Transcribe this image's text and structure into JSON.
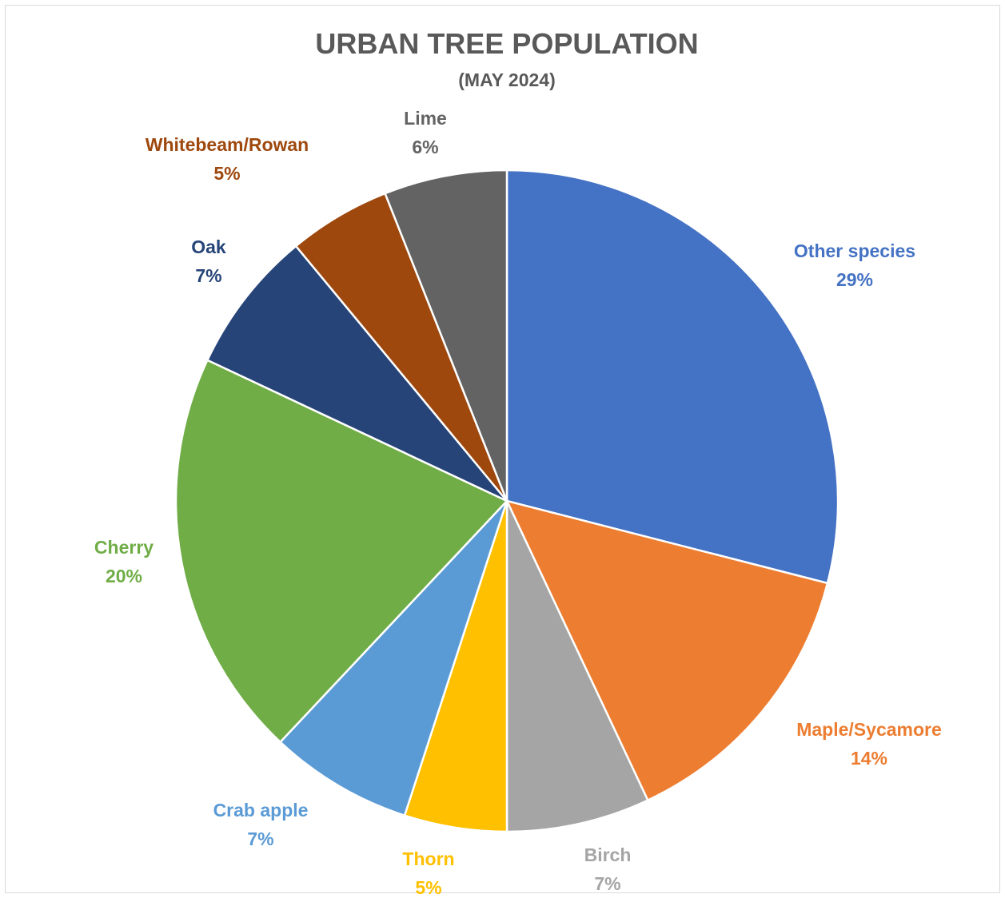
{
  "chart_data": {
    "type": "pie",
    "title": "URBAN TREE POPULATION",
    "subtitle": "(MAY 2024)",
    "slices": [
      {
        "name": "Other species",
        "value": 29,
        "label": "29%",
        "color": "#4472C4"
      },
      {
        "name": "Maple/Sycamore",
        "value": 14,
        "label": "14%",
        "color": "#ED7D31"
      },
      {
        "name": "Birch",
        "value": 7,
        "label": "7%",
        "color": "#A5A5A5"
      },
      {
        "name": "Thorn",
        "value": 5,
        "label": "5%",
        "color": "#FFC000"
      },
      {
        "name": "Crab apple",
        "value": 7,
        "label": "7%",
        "color": "#5B9BD5"
      },
      {
        "name": "Cherry",
        "value": 20,
        "label": "20%",
        "color": "#70AD47"
      },
      {
        "name": "Oak",
        "value": 7,
        "label": "7%",
        "color": "#264478"
      },
      {
        "name": "Whitebeam/Rowan",
        "value": 5,
        "label": "5%",
        "color": "#9E480E"
      },
      {
        "name": "Lime",
        "value": 6,
        "label": "6%",
        "color": "#636363"
      }
    ]
  }
}
